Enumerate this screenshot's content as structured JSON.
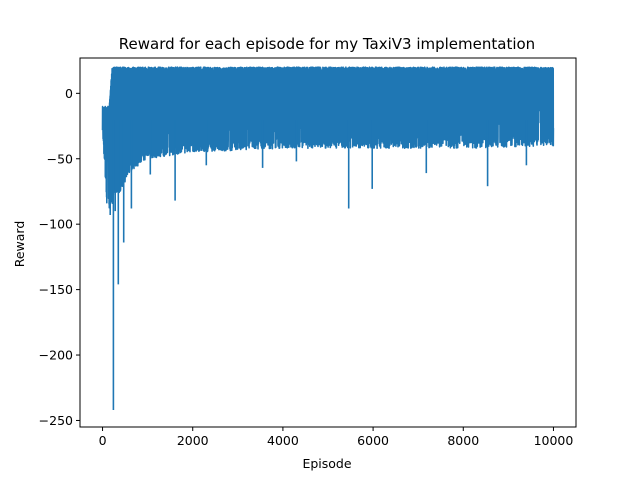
{
  "chart_data": {
    "type": "line",
    "title": "Reward for each episode for my TaxiV3 implementation",
    "xlabel": "Episode",
    "ylabel": "Reward",
    "xlim": [
      -500,
      10500
    ],
    "ylim": [
      -255,
      27
    ],
    "xticks": [
      0,
      2000,
      4000,
      6000,
      8000,
      10000
    ],
    "xtick_labels": [
      "0",
      "2000",
      "4000",
      "6000",
      "8000",
      "10000"
    ],
    "yticks": [
      -250,
      -200,
      -150,
      -100,
      -50,
      0
    ],
    "ytick_labels": [
      "−250",
      "−200",
      "−150",
      "−100",
      "−50",
      "0"
    ],
    "grid": false,
    "series": [
      {
        "color": "#1f77b4",
        "episodes": 10000,
        "upper_envelope": {
          "x": [
            0,
            30,
            60,
            100,
            150,
            190,
            210,
            250,
            300,
            400,
            10000
          ],
          "y": [
            -10,
            -10,
            -10,
            -10,
            -10,
            10,
            20,
            20,
            20,
            20,
            20
          ]
        },
        "lower_envelope": {
          "x": [
            0,
            50,
            100,
            150,
            200,
            300,
            400,
            600,
            1000,
            2000,
            4000,
            6000,
            8000,
            10000
          ],
          "y": [
            -36,
            -55,
            -92,
            -90,
            -85,
            -80,
            -75,
            -60,
            -50,
            -45,
            -42,
            -42,
            -42,
            -40
          ]
        },
        "dips": [
          {
            "x": 240,
            "y": -242
          },
          {
            "x": 350,
            "y": -146
          },
          {
            "x": 470,
            "y": -114
          },
          {
            "x": 280,
            "y": -90
          },
          {
            "x": 170,
            "y": -93
          },
          {
            "x": 640,
            "y": -88
          },
          {
            "x": 1610,
            "y": -82
          },
          {
            "x": 5460,
            "y": -88
          },
          {
            "x": 5980,
            "y": -73
          },
          {
            "x": 8540,
            "y": -71
          },
          {
            "x": 1060,
            "y": -62
          },
          {
            "x": 3550,
            "y": -57
          },
          {
            "x": 7180,
            "y": -61
          },
          {
            "x": 9400,
            "y": -55
          },
          {
            "x": 2300,
            "y": -55
          },
          {
            "x": 4300,
            "y": -52
          }
        ]
      }
    ]
  }
}
